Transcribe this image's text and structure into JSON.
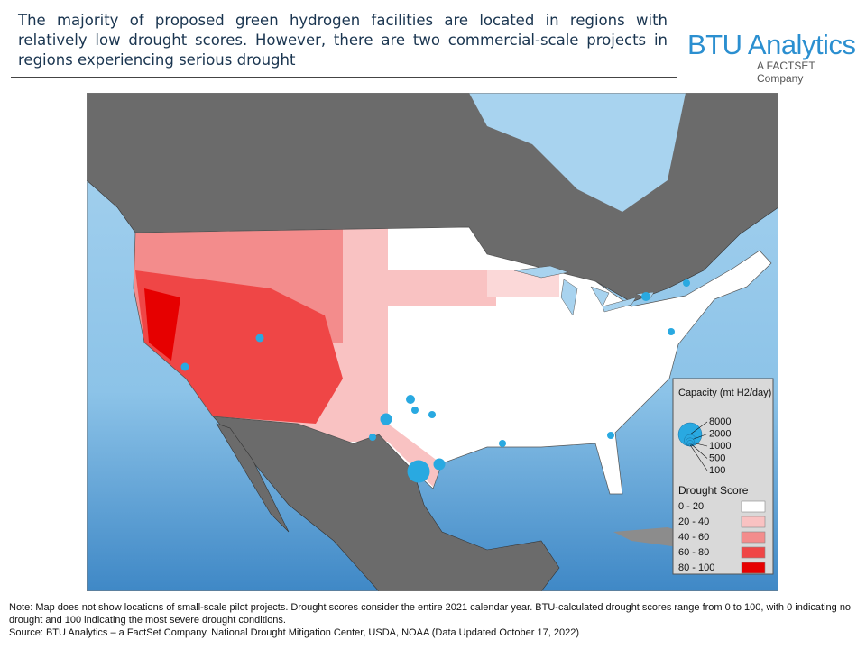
{
  "header": {
    "title": "The majority of proposed green hydrogen facilities are located in regions with relatively low drought scores. However, there are two commercial-scale projects in regions experiencing serious drought"
  },
  "logo": {
    "name": "BTU Analytics",
    "tagline": "A FACTSET Company"
  },
  "legend": {
    "capacity_title": "Capacity (mt H2/day)",
    "capacity_sizes": [
      8000,
      2000,
      1000,
      500,
      100
    ],
    "bubble_color": "#29a9e1",
    "drought_title": "Drought Score",
    "drought_classes": [
      {
        "label": "0 - 20",
        "color": "#ffffff"
      },
      {
        "label": "20 - 40",
        "color": "#f9c2c2"
      },
      {
        "label": "40 - 60",
        "color": "#f38c8c"
      },
      {
        "label": "60 - 80",
        "color": "#ef4646"
      },
      {
        "label": "80 - 100",
        "color": "#e60000"
      }
    ]
  },
  "footer": {
    "note": "Note:  Map does not show locations of small-scale pilot projects. Drought scores consider the entire 2021 calendar year. BTU-calculated drought scores range from 0 to 100, with 0 indicating no drought and 100 indicating the most severe drought conditions.",
    "source": "Source: BTU Analytics – a FactSet Company, National Drought Mitigation Center, USDA, NOAA (Data Updated October 17, 2022)"
  }
}
